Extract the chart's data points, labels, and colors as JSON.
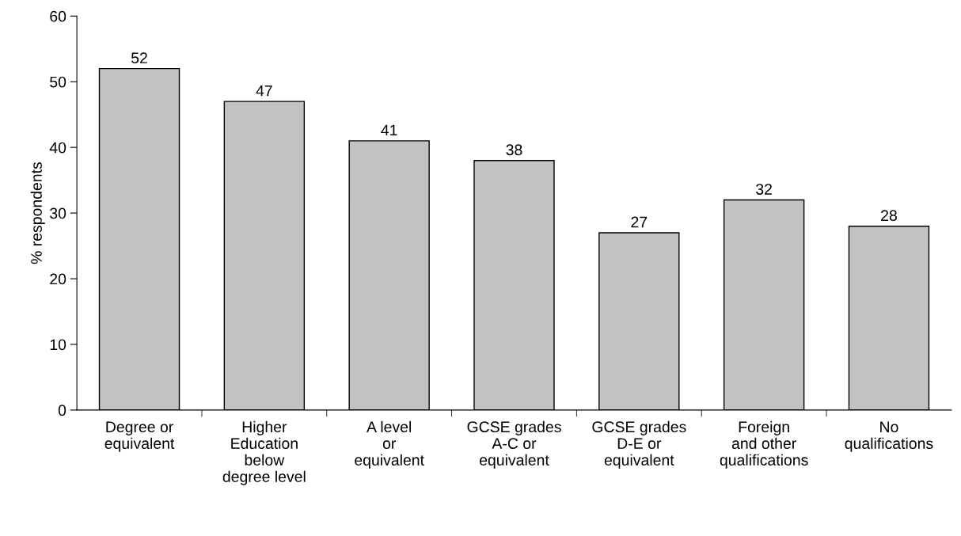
{
  "chart_data": {
    "type": "bar",
    "ylabel": "% respondents",
    "categories": [
      "Degree or\nequivalent",
      "Higher\nEducation\nbelow\ndegree level",
      "A level\nor\nequivalent",
      "GCSE grades\nA-C or\nequivalent",
      "GCSE grades\nD-E or\nequivalent",
      "Foreign\nand other\nqualifications",
      "No\nqualifications"
    ],
    "values": [
      52,
      47,
      41,
      38,
      27,
      32,
      28
    ],
    "color": "#c1c2c4",
    "ylim": [
      0,
      60
    ],
    "yticks": [
      0,
      10,
      20,
      30,
      40,
      50,
      60
    ],
    "grid": false,
    "data_labels": true
  }
}
